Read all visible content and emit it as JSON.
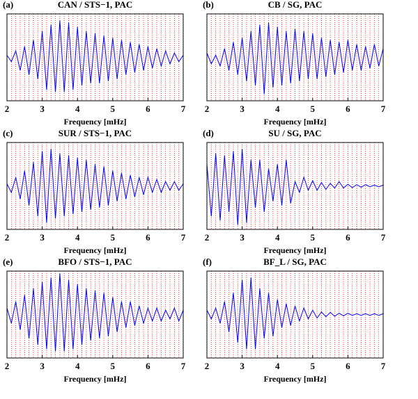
{
  "chart_data": [
    {
      "type": "line",
      "panel_label": "(a)",
      "title": "CAN / STS−1, PAC",
      "x_label": "Frequency [mHz]",
      "xlim": [
        2,
        7
      ],
      "xticks": [
        2,
        3,
        4,
        5,
        6,
        7
      ],
      "ylim": [
        -1,
        1
      ],
      "grid": true,
      "grid_color": "#ff0000",
      "color": "#0000ff",
      "x": [
        2.0,
        2.125,
        2.25,
        2.375,
        2.5,
        2.625,
        2.75,
        2.875,
        3.0,
        3.125,
        3.25,
        3.375,
        3.5,
        3.625,
        3.75,
        3.875,
        4.0,
        4.125,
        4.25,
        4.375,
        4.5,
        4.625,
        4.75,
        4.875,
        5.0,
        5.125,
        5.25,
        5.375,
        5.5,
        5.625,
        5.75,
        5.875,
        6.0,
        6.125,
        6.25,
        6.375,
        6.5,
        6.625,
        6.75,
        6.875,
        7.0
      ],
      "values": [
        0.05,
        -0.1,
        0.15,
        -0.3,
        0.25,
        -0.4,
        0.4,
        -0.5,
        0.6,
        -0.75,
        0.75,
        -0.8,
        0.85,
        -0.8,
        0.8,
        -0.75,
        0.7,
        -0.65,
        0.6,
        -0.6,
        0.55,
        -0.6,
        0.5,
        -0.55,
        0.45,
        -0.5,
        0.4,
        -0.4,
        0.35,
        -0.35,
        0.3,
        -0.3,
        0.25,
        -0.25,
        0.2,
        -0.2,
        0.15,
        -0.15,
        0.1,
        -0.1,
        0.05
      ]
    },
    {
      "type": "line",
      "panel_label": "(b)",
      "title": "CB / SG, PAC",
      "x_label": "Frequency [mHz]",
      "xlim": [
        2,
        7
      ],
      "xticks": [
        2,
        3,
        4,
        5,
        6,
        7
      ],
      "ylim": [
        -1,
        1
      ],
      "grid": true,
      "grid_color": "#ff0000",
      "color": "#0000ff",
      "x": [
        2.0,
        2.125,
        2.25,
        2.375,
        2.5,
        2.625,
        2.75,
        2.875,
        3.0,
        3.125,
        3.25,
        3.375,
        3.5,
        3.625,
        3.75,
        3.875,
        4.0,
        4.125,
        4.25,
        4.375,
        4.5,
        4.625,
        4.75,
        4.875,
        5.0,
        5.125,
        5.25,
        5.375,
        5.5,
        5.625,
        5.75,
        5.875,
        6.0,
        6.125,
        6.25,
        6.375,
        6.5,
        6.625,
        6.75,
        6.875,
        7.0
      ],
      "values": [
        0.1,
        -0.15,
        0.05,
        -0.2,
        0.2,
        -0.3,
        0.35,
        -0.4,
        0.45,
        -0.55,
        0.6,
        -0.65,
        0.75,
        -0.85,
        0.8,
        -0.7,
        0.7,
        -0.65,
        0.6,
        -0.6,
        0.65,
        -0.55,
        0.6,
        -0.5,
        0.55,
        -0.5,
        0.45,
        -0.45,
        0.4,
        -0.4,
        0.35,
        -0.35,
        0.4,
        -0.3,
        0.3,
        -0.3,
        0.25,
        -0.25,
        0.3,
        -0.2,
        0.2
      ]
    },
    {
      "type": "line",
      "panel_label": "(c)",
      "title": "SUR / STS−1, PAC",
      "x_label": "Frequency [mHz]",
      "xlim": [
        2,
        7
      ],
      "xticks": [
        2,
        3,
        4,
        5,
        6,
        7
      ],
      "ylim": [
        -1,
        1
      ],
      "grid": true,
      "grid_color": "#ff0000",
      "color": "#0000ff",
      "x": [
        2.0,
        2.125,
        2.25,
        2.375,
        2.5,
        2.625,
        2.75,
        2.875,
        3.0,
        3.125,
        3.25,
        3.375,
        3.5,
        3.625,
        3.75,
        3.875,
        4.0,
        4.125,
        4.25,
        4.375,
        4.5,
        4.625,
        4.75,
        4.875,
        5.0,
        5.125,
        5.25,
        5.375,
        5.5,
        5.625,
        5.75,
        5.875,
        6.0,
        6.125,
        6.25,
        6.375,
        6.5,
        6.625,
        6.75,
        6.875,
        7.0
      ],
      "values": [
        0.05,
        -0.15,
        0.2,
        -0.3,
        0.35,
        -0.45,
        0.55,
        -0.7,
        0.8,
        -0.85,
        0.85,
        -0.75,
        0.75,
        -0.7,
        0.7,
        -0.65,
        0.65,
        -0.6,
        0.6,
        -0.55,
        0.5,
        -0.5,
        0.45,
        -0.45,
        0.35,
        -0.35,
        0.3,
        -0.3,
        0.25,
        -0.25,
        0.2,
        -0.2,
        0.2,
        -0.15,
        0.15,
        -0.15,
        0.1,
        -0.1,
        0.1,
        -0.1,
        0.05
      ]
    },
    {
      "type": "line",
      "panel_label": "(d)",
      "title": "SU / SG, PAC",
      "x_label": "Frequency [mHz]",
      "xlim": [
        2,
        7
      ],
      "xticks": [
        2,
        3,
        4,
        5,
        6,
        7
      ],
      "ylim": [
        -1,
        1
      ],
      "grid": true,
      "grid_color": "#ff0000",
      "color": "#0000ff",
      "x": [
        2.0,
        2.125,
        2.25,
        2.375,
        2.5,
        2.625,
        2.75,
        2.875,
        3.0,
        3.125,
        3.25,
        3.375,
        3.5,
        3.625,
        3.75,
        3.875,
        4.0,
        4.125,
        4.25,
        4.375,
        4.5,
        4.625,
        4.75,
        4.875,
        5.0,
        5.125,
        5.25,
        5.375,
        5.5,
        5.625,
        5.75,
        5.875,
        6.0,
        6.125,
        6.25,
        6.375,
        6.5,
        6.625,
        6.75,
        6.875,
        7.0
      ],
      "values": [
        0.5,
        -0.7,
        0.75,
        -0.8,
        0.7,
        -0.6,
        0.8,
        -0.9,
        0.85,
        -0.85,
        0.6,
        -0.5,
        0.6,
        -0.6,
        0.4,
        -0.35,
        0.5,
        -0.45,
        0.6,
        -0.4,
        0.1,
        -0.15,
        0.2,
        -0.1,
        0.12,
        -0.1,
        0.08,
        -0.08,
        0.06,
        -0.05,
        0.1,
        -0.05,
        0.04,
        -0.04,
        0.03,
        -0.03,
        0.03,
        -0.02,
        0.02,
        -0.02,
        0.02
      ]
    },
    {
      "type": "line",
      "panel_label": "(e)",
      "title": "BFO / STS−1, PAC",
      "x_label": "Frequency [mHz]",
      "xlim": [
        2,
        7
      ],
      "xticks": [
        2,
        3,
        4,
        5,
        6,
        7
      ],
      "ylim": [
        -1,
        1
      ],
      "grid": true,
      "grid_color": "#ff0000",
      "color": "#0000ff",
      "x": [
        2.0,
        2.125,
        2.25,
        2.375,
        2.5,
        2.625,
        2.75,
        2.875,
        3.0,
        3.125,
        3.25,
        3.375,
        3.5,
        3.625,
        3.75,
        3.875,
        4.0,
        4.125,
        4.25,
        4.375,
        4.5,
        4.625,
        4.75,
        4.875,
        5.0,
        5.125,
        5.25,
        5.375,
        5.5,
        5.625,
        5.75,
        5.875,
        6.0,
        6.125,
        6.25,
        6.375,
        6.5,
        6.625,
        6.75,
        6.875,
        7.0
      ],
      "values": [
        0.15,
        -0.2,
        0.3,
        -0.35,
        0.45,
        -0.55,
        0.6,
        -0.7,
        0.75,
        -0.8,
        0.85,
        -0.85,
        0.95,
        -0.85,
        0.8,
        -0.8,
        0.7,
        -0.7,
        0.6,
        -0.6,
        0.55,
        -0.55,
        0.5,
        -0.5,
        0.4,
        -0.4,
        0.3,
        -0.3,
        0.3,
        -0.25,
        0.2,
        -0.2,
        0.15,
        -0.15,
        0.15,
        -0.15,
        0.1,
        -0.1,
        0.15,
        -0.15,
        0.1
      ]
    },
    {
      "type": "line",
      "panel_label": "(f)",
      "title": "BF_L / SG, PAC",
      "x_label": "Frequency [mHz]",
      "xlim": [
        2,
        7
      ],
      "xticks": [
        2,
        3,
        4,
        5,
        6,
        7
      ],
      "ylim": [
        -1,
        1
      ],
      "grid": true,
      "grid_color": "#ff0000",
      "color": "#0000ff",
      "x": [
        2.0,
        2.125,
        2.25,
        2.375,
        2.5,
        2.625,
        2.75,
        2.875,
        3.0,
        3.125,
        3.25,
        3.375,
        3.5,
        3.625,
        3.75,
        3.875,
        4.0,
        4.125,
        4.25,
        4.375,
        4.5,
        4.625,
        4.75,
        4.875,
        5.0,
        5.125,
        5.25,
        5.375,
        5.5,
        5.625,
        5.75,
        5.875,
        6.0,
        6.125,
        6.25,
        6.375,
        6.5,
        6.625,
        6.75,
        6.875,
        7.0
      ],
      "values": [
        0.1,
        -0.1,
        0.15,
        -0.2,
        0.3,
        -0.4,
        0.5,
        -0.65,
        0.8,
        -0.8,
        0.85,
        -0.8,
        0.6,
        -0.55,
        0.5,
        -0.5,
        0.35,
        -0.3,
        0.25,
        -0.25,
        0.2,
        -0.15,
        0.15,
        -0.1,
        0.1,
        -0.08,
        0.06,
        -0.05,
        0.05,
        -0.04,
        0.03,
        -0.03,
        0.03,
        -0.02,
        0.02,
        -0.02,
        0.02,
        -0.02,
        0.02,
        -0.02,
        0.02
      ]
    }
  ]
}
